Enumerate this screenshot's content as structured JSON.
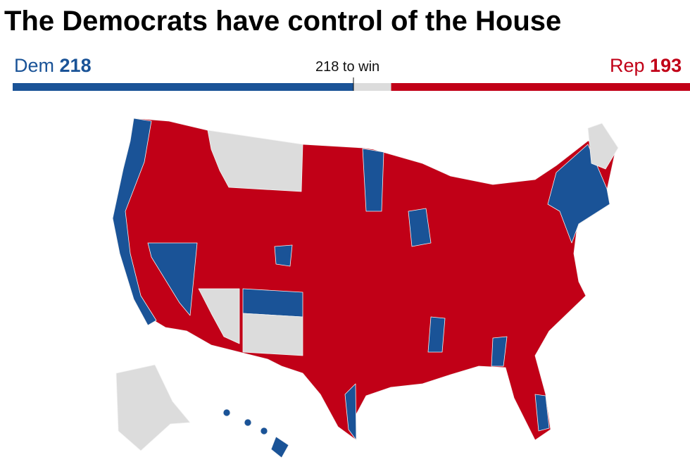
{
  "title": "The Democrats have control of the House",
  "dem": {
    "label": "Dem",
    "seats": 218,
    "color": "#1a5397"
  },
  "majority_label": "218 to win",
  "rep": {
    "label": "Rep",
    "seats": 193,
    "color": "#c10017"
  }
}
